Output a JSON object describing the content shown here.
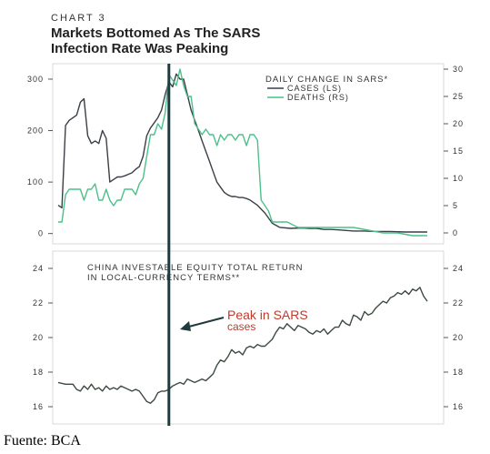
{
  "header": {
    "chart_number": "CHART 3",
    "title_line1": "Markets Bottomed As The SARS",
    "title_line2": "Infection Rate Was Peaking"
  },
  "source_note": "Fuente: BCA",
  "colors": {
    "cases": "#3a3f46",
    "deaths": "#4cc08a",
    "equity": "#3d4a40",
    "marker": "#1f3b3d",
    "annotation": "#c0392b"
  },
  "chart_data": [
    {
      "type": "line",
      "panel": "top",
      "legend": {
        "title": "DAILY CHANGE IN SARS*",
        "entries": [
          "CASES (LS)",
          "DEATHS (RS)"
        ],
        "placement": "top-right"
      },
      "x_index_range": [
        0,
        100
      ],
      "y_left": {
        "ylim": [
          -20,
          330
        ],
        "ticks": [
          0,
          100,
          200,
          300
        ]
      },
      "y_right": {
        "ylim": [
          -2,
          31
        ],
        "ticks": [
          0,
          5,
          10,
          15,
          20,
          25,
          30
        ]
      },
      "series": [
        {
          "name": "CASES (LS)",
          "axis": "left",
          "x": [
            0,
            1,
            2,
            3,
            4,
            5,
            6,
            7,
            8,
            9,
            10,
            11,
            12,
            13,
            14,
            15,
            16,
            17,
            18,
            19,
            20,
            21,
            22,
            23,
            24,
            25,
            26,
            27,
            28,
            29,
            30,
            31,
            32,
            33,
            34,
            35,
            36,
            37,
            38,
            39,
            40,
            41,
            42,
            43,
            44,
            45,
            46,
            47,
            48,
            49,
            50,
            51,
            52,
            54,
            56,
            58,
            60,
            63,
            66,
            68,
            70,
            72,
            74,
            76,
            78,
            80,
            83,
            86,
            90,
            94,
            98,
            100
          ],
          "y": [
            55,
            50,
            210,
            220,
            225,
            230,
            255,
            262,
            190,
            175,
            180,
            175,
            200,
            185,
            100,
            105,
            110,
            110,
            112,
            115,
            118,
            125,
            130,
            150,
            190,
            205,
            215,
            225,
            240,
            270,
            295,
            285,
            310,
            300,
            300,
            270,
            240,
            220,
            200,
            180,
            160,
            140,
            120,
            100,
            90,
            80,
            75,
            72,
            72,
            70,
            70,
            68,
            65,
            55,
            40,
            20,
            12,
            10,
            11,
            10,
            10,
            8,
            8,
            7,
            6,
            5,
            5,
            4,
            4,
            3,
            3,
            3
          ]
        },
        {
          "name": "DEATHS (RS)",
          "axis": "right",
          "x": [
            0,
            1,
            2,
            3,
            4,
            5,
            6,
            7,
            8,
            9,
            10,
            11,
            12,
            13,
            14,
            15,
            16,
            17,
            18,
            19,
            20,
            21,
            22,
            23,
            24,
            25,
            26,
            27,
            28,
            29,
            30,
            31,
            32,
            33,
            34,
            35,
            36,
            37,
            38,
            39,
            40,
            41,
            42,
            43,
            44,
            45,
            46,
            47,
            48,
            49,
            50,
            51,
            52,
            53,
            54,
            55,
            56,
            57,
            58,
            60,
            62,
            65,
            68,
            72,
            76,
            80,
            84,
            88,
            92,
            96,
            98,
            100
          ],
          "y": [
            2,
            2,
            7,
            8,
            8,
            8,
            8,
            6,
            8,
            8,
            9,
            6,
            6,
            8,
            6,
            5,
            6,
            6,
            8,
            8,
            8,
            7,
            9,
            10,
            14,
            18,
            18,
            20,
            19,
            22,
            29,
            28,
            27,
            30,
            27,
            25,
            25,
            20,
            19,
            18,
            19,
            18,
            18,
            16,
            18,
            17,
            18,
            18,
            17,
            18,
            18,
            16,
            18,
            18,
            17,
            6,
            5,
            4,
            2,
            2,
            2,
            1,
            1,
            1,
            1,
            1,
            0.5,
            0,
            0,
            -0.5,
            -0.5,
            -0.5
          ]
        }
      ],
      "ylabel_left": "",
      "ylabel_right": "",
      "grid": false
    },
    {
      "type": "line",
      "panel": "bottom",
      "legend": {
        "title": "CHINA INVESTABLE EQUITY TOTAL RETURN IN LOCAL-CURRENCY TERMS**",
        "entries": [],
        "placement": "top-left"
      },
      "x_index_range": [
        0,
        100
      ],
      "y_left": {
        "ylim": [
          15,
          25
        ],
        "ticks": [
          16,
          18,
          20,
          22,
          24
        ]
      },
      "y_right": {
        "ylim": [
          15,
          25
        ],
        "ticks": [
          16,
          18,
          20,
          22,
          24
        ]
      },
      "series": [
        {
          "name": "China equity",
          "x": [
            0,
            2,
            4,
            5,
            6,
            7,
            8,
            9,
            10,
            11,
            12,
            13,
            14,
            15,
            16,
            17,
            18,
            19,
            20,
            21,
            22,
            23,
            24,
            25,
            26,
            27,
            28,
            29,
            30,
            31,
            32,
            33,
            34,
            35,
            36,
            37,
            38,
            39,
            40,
            41,
            42,
            43,
            44,
            45,
            46,
            47,
            48,
            49,
            50,
            51,
            52,
            53,
            54,
            55,
            56,
            57,
            58,
            59,
            60,
            61,
            62,
            63,
            64,
            65,
            66,
            67,
            68,
            69,
            70,
            71,
            72,
            73,
            74,
            75,
            76,
            77,
            78,
            79,
            80,
            81,
            82,
            83,
            84,
            85,
            86,
            87,
            88,
            89,
            90,
            91,
            92,
            93,
            94,
            95,
            96,
            97,
            98,
            99,
            100
          ],
          "y": [
            17.4,
            17.3,
            17.3,
            17.0,
            16.9,
            17.2,
            17.0,
            17.3,
            17.0,
            17.1,
            16.9,
            17.2,
            17.0,
            17.1,
            17.0,
            17.2,
            17.1,
            17.0,
            16.9,
            17.0,
            16.9,
            16.6,
            16.3,
            16.2,
            16.4,
            16.8,
            16.9,
            16.9,
            17.0,
            17.2,
            17.3,
            17.4,
            17.3,
            17.6,
            17.5,
            17.4,
            17.5,
            17.6,
            17.5,
            17.7,
            17.9,
            18.4,
            18.7,
            18.6,
            18.9,
            19.3,
            19.1,
            19.2,
            19.0,
            19.4,
            19.5,
            19.4,
            19.6,
            19.5,
            19.5,
            19.7,
            19.9,
            20.3,
            20.6,
            20.5,
            20.8,
            20.6,
            20.4,
            20.7,
            20.6,
            20.5,
            20.3,
            20.2,
            20.4,
            20.3,
            20.5,
            20.2,
            20.4,
            20.6,
            20.6,
            21.0,
            20.8,
            20.7,
            21.3,
            21.2,
            21.0,
            21.5,
            21.3,
            21.4,
            21.7,
            21.9,
            22.1,
            22.0,
            22.3,
            22.4,
            22.6,
            22.5,
            22.7,
            22.5,
            22.8,
            22.7,
            22.9,
            22.4,
            22.1
          ]
        }
      ],
      "grid": false
    }
  ],
  "annotation": {
    "line1": "Peak in SARS",
    "line2": "cases",
    "marker_x_index": 30
  }
}
